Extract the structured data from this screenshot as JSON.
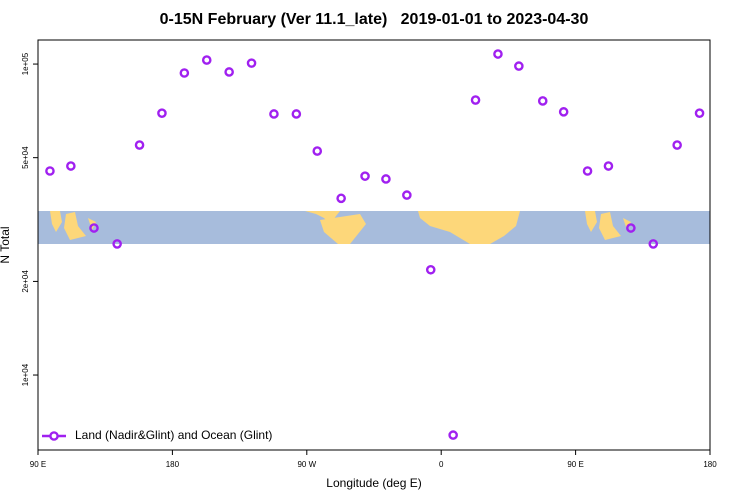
{
  "chart_data": {
    "type": "scatter",
    "title": "0-15N February (Ver 11.1_late)   2019-01-01 to 2023-04-30",
    "x_label": "Longitude (deg E)",
    "y_label": "N Total",
    "xlim": [
      90,
      540
    ],
    "xticks": [
      {
        "value": 90,
        "label": "90 E"
      },
      180,
      {
        "value": 270,
        "label": "90 W"
      },
      {
        "value": 360,
        "label": "0"
      },
      {
        "value": 450,
        "label": "90 E"
      },
      {
        "value": 540,
        "label": "180"
      }
    ],
    "ylim": [
      5740,
      119500
    ],
    "log_y": true,
    "yticks": [
      {
        "value": 10000,
        "label": "1e+04"
      },
      {
        "value": 20000,
        "label": "2e+04"
      },
      {
        "value": 50000,
        "label": "5e+04"
      },
      {
        "value": 100000,
        "label": "1e+05"
      }
    ],
    "legend": "lower left",
    "series": [
      {
        "name": "Land (Nadir&Glint) and Ocean (Glint)",
        "color": "#a020f0",
        "x": [
          98,
          112,
          127.5,
          143,
          158,
          173,
          188,
          203,
          218,
          233,
          248,
          263,
          277,
          293,
          309,
          323,
          337,
          353,
          368,
          383,
          398,
          412,
          428,
          442,
          458,
          472,
          487,
          502,
          518,
          533
        ],
        "values": [
          45300,
          47000,
          29700,
          26400,
          54900,
          69500,
          93600,
          103000,
          94300,
          100700,
          69100,
          69100,
          52500,
          37000,
          43600,
          42700,
          37900,
          21800,
          6410,
          76600,
          107700,
          98500,
          76100,
          70200,
          45300,
          47000,
          29700,
          26400,
          54900,
          69500
        ]
      }
    ]
  }
}
